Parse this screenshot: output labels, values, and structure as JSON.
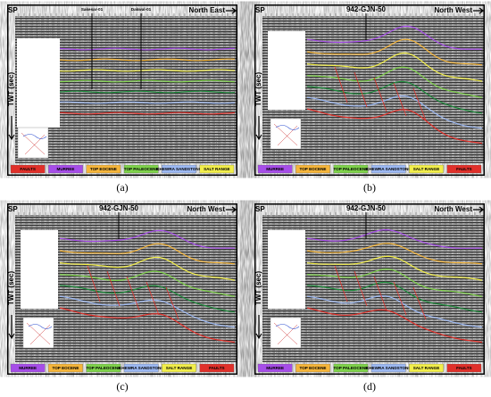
{
  "panels": [
    {
      "caption": "(a)",
      "sp": "SP",
      "direction": "North East",
      "axis_label": "TWT (sec)",
      "wells": [
        "Sakesar-01",
        "Dakwal-01"
      ],
      "legend": [
        {
          "label": "FAULTS",
          "color": "#e0302a"
        },
        {
          "label": "MURREE",
          "color": "#a64de8"
        },
        {
          "label": "TOP EOCENE",
          "color": "#f5b53a"
        },
        {
          "label": "TOP PALEOCENE",
          "color": "#7ed24a"
        },
        {
          "label": "KHEWRA SANDSTONE",
          "color": "#9cb8f2"
        },
        {
          "label": "SALT RANGE",
          "color": "#f2ee4a"
        }
      ]
    },
    {
      "caption": "(b)",
      "sp": "SP",
      "direction": "North West",
      "axis_label": "TWT (sec)",
      "wells": [
        "942-GJN-50"
      ],
      "legend": [
        {
          "label": "MURREE",
          "color": "#a64de8"
        },
        {
          "label": "TOP EOCENE",
          "color": "#f5b53a"
        },
        {
          "label": "TOP PALEOCENE",
          "color": "#7ed24a"
        },
        {
          "label": "KHEWRA SANDSTONE",
          "color": "#9cb8f2"
        },
        {
          "label": "SALT RANGE",
          "color": "#f2ee4a"
        },
        {
          "label": "FAULTS",
          "color": "#e0302a"
        }
      ]
    },
    {
      "caption": "(c)",
      "sp": "SP",
      "direction": "North West",
      "axis_label": "TWT (sec)",
      "wells": [
        "942-GJN-50"
      ],
      "legend": [
        {
          "label": "MURREE",
          "color": "#a64de8"
        },
        {
          "label": "TOP EOCENE",
          "color": "#f5b53a"
        },
        {
          "label": "TOP PALEOCENE",
          "color": "#7ed24a"
        },
        {
          "label": "KHEWRA SANDSTONE",
          "color": "#9cb8f2"
        },
        {
          "label": "SALT RANGE",
          "color": "#f2ee4a"
        },
        {
          "label": "FAULTS",
          "color": "#e0302a"
        }
      ]
    },
    {
      "caption": "(d)",
      "sp": "SP",
      "direction": "North West",
      "axis_label": "TWT (sec)",
      "wells": [
        "942-GJN-50"
      ],
      "legend": [
        {
          "label": "MURREE",
          "color": "#a64de8"
        },
        {
          "label": "TOP EOCENE",
          "color": "#f5b53a"
        },
        {
          "label": "TOP PALEOCENE",
          "color": "#7ed24a"
        },
        {
          "label": "KHEWRA SANDSTONE",
          "color": "#9cb8f2"
        },
        {
          "label": "SALT RANGE",
          "color": "#f2ee4a"
        },
        {
          "label": "FAULTS",
          "color": "#e0302a"
        }
      ]
    }
  ]
}
